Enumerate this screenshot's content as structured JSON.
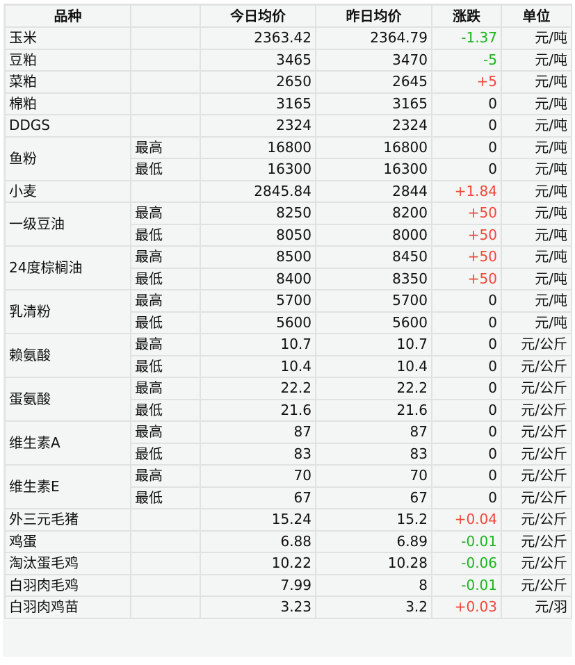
{
  "headers": [
    "品种",
    "",
    "今日均价",
    "昨日均价",
    "涨跌",
    "单位"
  ],
  "colors": {
    "up": "#f0473a",
    "down": "#1db41d",
    "background": "#f3f6f5",
    "border": "#dfe2e1"
  },
  "items": [
    {
      "name": "玉米",
      "rows": [
        {
          "sub": "",
          "today": "2363.42",
          "yesterday": "2364.79",
          "change": "-1.37",
          "unit": "元/吨"
        }
      ]
    },
    {
      "name": "豆粕",
      "rows": [
        {
          "sub": "",
          "today": "3465",
          "yesterday": "3470",
          "change": "-5",
          "unit": "元/吨"
        }
      ]
    },
    {
      "name": "菜粕",
      "rows": [
        {
          "sub": "",
          "today": "2650",
          "yesterday": "2645",
          "change": "+5",
          "unit": "元/吨"
        }
      ]
    },
    {
      "name": "棉粕",
      "rows": [
        {
          "sub": "",
          "today": "3165",
          "yesterday": "3165",
          "change": "0",
          "unit": "元/吨"
        }
      ]
    },
    {
      "name": "DDGS",
      "rows": [
        {
          "sub": "",
          "today": "2324",
          "yesterday": "2324",
          "change": "0",
          "unit": "元/吨"
        }
      ]
    },
    {
      "name": "鱼粉",
      "rows": [
        {
          "sub": "最高",
          "today": "16800",
          "yesterday": "16800",
          "change": "0",
          "unit": "元/吨"
        },
        {
          "sub": "最低",
          "today": "16300",
          "yesterday": "16300",
          "change": "0",
          "unit": "元/吨"
        }
      ]
    },
    {
      "name": "小麦",
      "rows": [
        {
          "sub": "",
          "today": "2845.84",
          "yesterday": "2844",
          "change": "+1.84",
          "unit": "元/吨"
        }
      ]
    },
    {
      "name": "一级豆油",
      "rows": [
        {
          "sub": "最高",
          "today": "8250",
          "yesterday": "8200",
          "change": "+50",
          "unit": "元/吨"
        },
        {
          "sub": "最低",
          "today": "8050",
          "yesterday": "8000",
          "change": "+50",
          "unit": "元/吨"
        }
      ]
    },
    {
      "name": "24度棕榈油",
      "rows": [
        {
          "sub": "最高",
          "today": "8500",
          "yesterday": "8450",
          "change": "+50",
          "unit": "元/吨"
        },
        {
          "sub": "最低",
          "today": "8400",
          "yesterday": "8350",
          "change": "+50",
          "unit": "元/吨"
        }
      ]
    },
    {
      "name": "乳清粉",
      "rows": [
        {
          "sub": "最高",
          "today": "5700",
          "yesterday": "5700",
          "change": "0",
          "unit": "元/吨"
        },
        {
          "sub": "最低",
          "today": "5600",
          "yesterday": "5600",
          "change": "0",
          "unit": "元/吨"
        }
      ]
    },
    {
      "name": "赖氨酸",
      "rows": [
        {
          "sub": "最高",
          "today": "10.7",
          "yesterday": "10.7",
          "change": "0",
          "unit": "元/公斤"
        },
        {
          "sub": "最低",
          "today": "10.4",
          "yesterday": "10.4",
          "change": "0",
          "unit": "元/公斤"
        }
      ]
    },
    {
      "name": "蛋氨酸",
      "rows": [
        {
          "sub": "最高",
          "today": "22.2",
          "yesterday": "22.2",
          "change": "0",
          "unit": "元/公斤"
        },
        {
          "sub": "最低",
          "today": "21.6",
          "yesterday": "21.6",
          "change": "0",
          "unit": "元/公斤"
        }
      ]
    },
    {
      "name": "维生素A",
      "rows": [
        {
          "sub": "最高",
          "today": "87",
          "yesterday": "87",
          "change": "0",
          "unit": "元/公斤"
        },
        {
          "sub": "最低",
          "today": "83",
          "yesterday": "83",
          "change": "0",
          "unit": "元/公斤"
        }
      ]
    },
    {
      "name": "维生素E",
      "rows": [
        {
          "sub": "最高",
          "today": "70",
          "yesterday": "70",
          "change": "0",
          "unit": "元/公斤"
        },
        {
          "sub": "最低",
          "today": "67",
          "yesterday": "67",
          "change": "0",
          "unit": "元/公斤"
        }
      ]
    },
    {
      "name": "外三元毛猪",
      "rows": [
        {
          "sub": "",
          "today": "15.24",
          "yesterday": "15.2",
          "change": "+0.04",
          "unit": "元/公斤"
        }
      ]
    },
    {
      "name": "鸡蛋",
      "rows": [
        {
          "sub": "",
          "today": "6.88",
          "yesterday": "6.89",
          "change": "-0.01",
          "unit": "元/公斤"
        }
      ]
    },
    {
      "name": "淘汰蛋毛鸡",
      "rows": [
        {
          "sub": "",
          "today": "10.22",
          "yesterday": "10.28",
          "change": "-0.06",
          "unit": "元/公斤"
        }
      ]
    },
    {
      "name": "白羽肉毛鸡",
      "rows": [
        {
          "sub": "",
          "today": "7.99",
          "yesterday": "8",
          "change": "-0.01",
          "unit": "元/公斤"
        }
      ]
    },
    {
      "name": "白羽肉鸡苗",
      "rows": [
        {
          "sub": "",
          "today": "3.23",
          "yesterday": "3.2",
          "change": "+0.03",
          "unit": "元/羽"
        }
      ]
    }
  ]
}
